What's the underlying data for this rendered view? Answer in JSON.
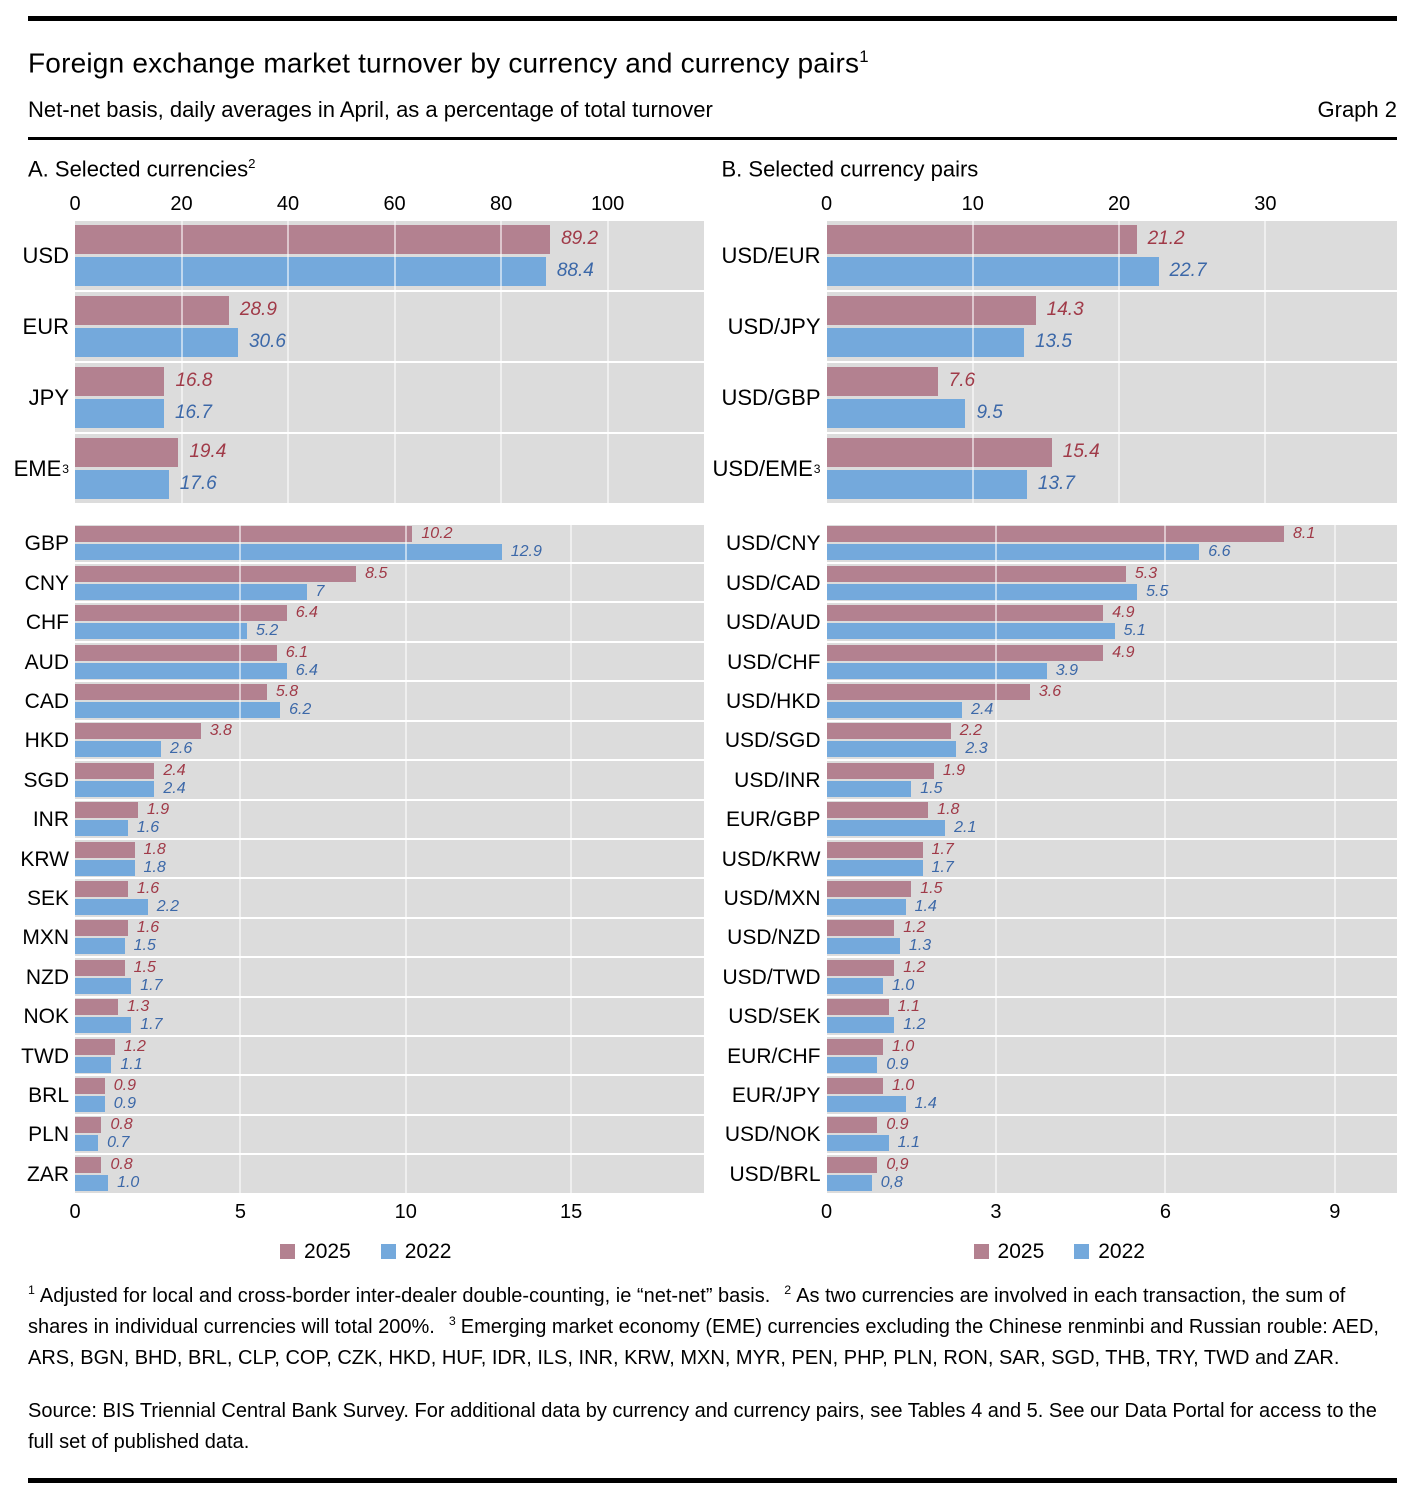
{
  "header": {
    "title": "Foreign exchange market turnover by currency and currency pairs",
    "title_sup": "1",
    "subtitle": "Net-net basis, daily averages in April, as a percentage of total turnover",
    "graph_label": "Graph 2"
  },
  "colors": {
    "bar_2025": "#b38190",
    "bar_2022": "#74a9dc",
    "label_2025": "#a03a48",
    "label_2022": "#3c68a8",
    "plot_bg": "#dcdcdc",
    "gridline": "#ffffff"
  },
  "legend": {
    "y2025": "2025",
    "y2022": "2022"
  },
  "chart_data": [
    {
      "type": "bar",
      "orientation": "horizontal",
      "title": "A. Selected currencies",
      "title_sup": "2",
      "legend_position": "bottom",
      "top_section": {
        "axis": {
          "position": "top",
          "ticks": [
            0,
            20,
            40,
            60,
            80,
            100
          ],
          "max": 118
        },
        "categories": [
          {
            "label": "USD"
          },
          {
            "label": "EUR"
          },
          {
            "label": "JPY"
          },
          {
            "label": "EME",
            "sup": "3"
          }
        ],
        "series": [
          {
            "name": "2025",
            "values": [
              89.2,
              28.9,
              16.8,
              19.4
            ],
            "labels": [
              "89.2",
              "28.9",
              "16.8",
              "19.4"
            ]
          },
          {
            "name": "2022",
            "values": [
              88.4,
              30.6,
              16.7,
              17.6
            ],
            "labels": [
              "88.4",
              "30.6",
              "16.7",
              "17.6"
            ]
          }
        ]
      },
      "bottom_section": {
        "axis": {
          "position": "bottom",
          "ticks": [
            0,
            5,
            10,
            15
          ],
          "max": 19
        },
        "categories": [
          {
            "label": "GBP"
          },
          {
            "label": "CNY"
          },
          {
            "label": "CHF"
          },
          {
            "label": "AUD"
          },
          {
            "label": "CAD"
          },
          {
            "label": "HKD"
          },
          {
            "label": "SGD"
          },
          {
            "label": "INR"
          },
          {
            "label": "KRW"
          },
          {
            "label": "SEK"
          },
          {
            "label": "MXN"
          },
          {
            "label": "NZD"
          },
          {
            "label": "NOK"
          },
          {
            "label": "TWD"
          },
          {
            "label": "BRL"
          },
          {
            "label": "PLN"
          },
          {
            "label": "ZAR"
          }
        ],
        "series": [
          {
            "name": "2025",
            "values": [
              10.2,
              8.5,
              6.4,
              6.1,
              5.8,
              3.8,
              2.4,
              1.9,
              1.8,
              1.6,
              1.6,
              1.5,
              1.3,
              1.2,
              0.9,
              0.8,
              0.8
            ],
            "labels": [
              "10.2",
              "8.5",
              "6.4",
              "6.1",
              "5.8",
              "3.8",
              "2.4",
              "1.9",
              "1.8",
              "1.6",
              "1.6",
              "1.5",
              "1.3",
              "1.2",
              "0.9",
              "0.8",
              "0.8"
            ]
          },
          {
            "name": "2022",
            "values": [
              12.9,
              7,
              5.2,
              6.4,
              6.2,
              2.6,
              2.4,
              1.6,
              1.8,
              2.2,
              1.5,
              1.7,
              1.7,
              1.1,
              0.9,
              0.7,
              1.0
            ],
            "labels": [
              "12.9",
              "7",
              "5.2",
              "6.4",
              "6.2",
              "2.6",
              "2.4",
              "1.6",
              "1.8",
              "2.2",
              "1.5",
              "1.7",
              "1.7",
              "1.1",
              "0.9",
              "0.7",
              "1.0"
            ]
          }
        ]
      }
    },
    {
      "type": "bar",
      "orientation": "horizontal",
      "title": "B. Selected currency pairs",
      "title_sup": "",
      "legend_position": "bottom",
      "top_section": {
        "axis": {
          "position": "top",
          "ticks": [
            0,
            10,
            20,
            30
          ],
          "max": 39
        },
        "categories": [
          {
            "label": "USD/EUR"
          },
          {
            "label": "USD/JPY"
          },
          {
            "label": "USD/GBP"
          },
          {
            "label": "USD/EME",
            "sup": "3"
          }
        ],
        "series": [
          {
            "name": "2025",
            "values": [
              21.2,
              14.3,
              7.6,
              15.4
            ],
            "labels": [
              "21.2",
              "14.3",
              "7.6",
              "15.4"
            ]
          },
          {
            "name": "2022",
            "values": [
              22.7,
              13.5,
              9.5,
              13.7
            ],
            "labels": [
              "22.7",
              "13.5",
              "9.5",
              "13.7"
            ]
          }
        ]
      },
      "bottom_section": {
        "axis": {
          "position": "bottom",
          "ticks": [
            0,
            3,
            6,
            9
          ],
          "max": 10.1
        },
        "categories": [
          {
            "label": "USD/CNY"
          },
          {
            "label": "USD/CAD"
          },
          {
            "label": "USD/AUD"
          },
          {
            "label": "USD/CHF"
          },
          {
            "label": "USD/HKD"
          },
          {
            "label": "USD/SGD"
          },
          {
            "label": "USD/INR"
          },
          {
            "label": "EUR/GBP"
          },
          {
            "label": "USD/KRW"
          },
          {
            "label": "USD/MXN"
          },
          {
            "label": "USD/NZD"
          },
          {
            "label": "USD/TWD"
          },
          {
            "label": "USD/SEK"
          },
          {
            "label": "EUR/CHF"
          },
          {
            "label": "EUR/JPY"
          },
          {
            "label": "USD/NOK"
          },
          {
            "label": "USD/BRL"
          }
        ],
        "series": [
          {
            "name": "2025",
            "values": [
              8.1,
              5.3,
              4.9,
              4.9,
              3.6,
              2.2,
              1.9,
              1.8,
              1.7,
              1.5,
              1.2,
              1.2,
              1.1,
              1.0,
              1.0,
              0.9,
              0.9
            ],
            "labels": [
              "8.1",
              "5.3",
              "4.9",
              "4.9",
              "3.6",
              "2.2",
              "1.9",
              "1.8",
              "1.7",
              "1.5",
              "1.2",
              "1.2",
              "1.1",
              "1.0",
              "1.0",
              "0.9",
              "0,9"
            ]
          },
          {
            "name": "2022",
            "values": [
              6.6,
              5.5,
              5.1,
              3.9,
              2.4,
              2.3,
              1.5,
              2.1,
              1.7,
              1.4,
              1.3,
              1.0,
              1.2,
              0.9,
              1.4,
              1.1,
              0.8
            ],
            "labels": [
              "6.6",
              "5.5",
              "5.1",
              "3.9",
              "2.4",
              "2.3",
              "1.5",
              "2.1",
              "1.7",
              "1.4",
              "1.3",
              "1.0",
              "1.2",
              "0.9",
              "1.4",
              "1.1",
              "0,8"
            ]
          }
        ]
      }
    }
  ],
  "footnotes": [
    {
      "sup": "1",
      "text": "Adjusted for local and cross-border inter-dealer double-counting, ie “net-net” basis."
    },
    {
      "sup": "2",
      "text": "As two currencies are involved in each transaction, the sum of shares in individual currencies will total 200%."
    },
    {
      "sup": "3",
      "text": "Emerging market economy (EME) currencies excluding the Chinese renminbi and Russian rouble: AED, ARS, BGN, BHD, BRL, CLP, COP, CZK, HKD, HUF, IDR, ILS, INR, KRW, MXN, MYR, PEN, PHP, PLN, RON, SAR, SGD, THB, TRY, TWD and ZAR."
    }
  ],
  "source": "Source: BIS Triennial Central Bank Survey. For additional data by currency and currency pairs, see Tables 4 and 5. See our Data Portal for access to the full set of published data."
}
